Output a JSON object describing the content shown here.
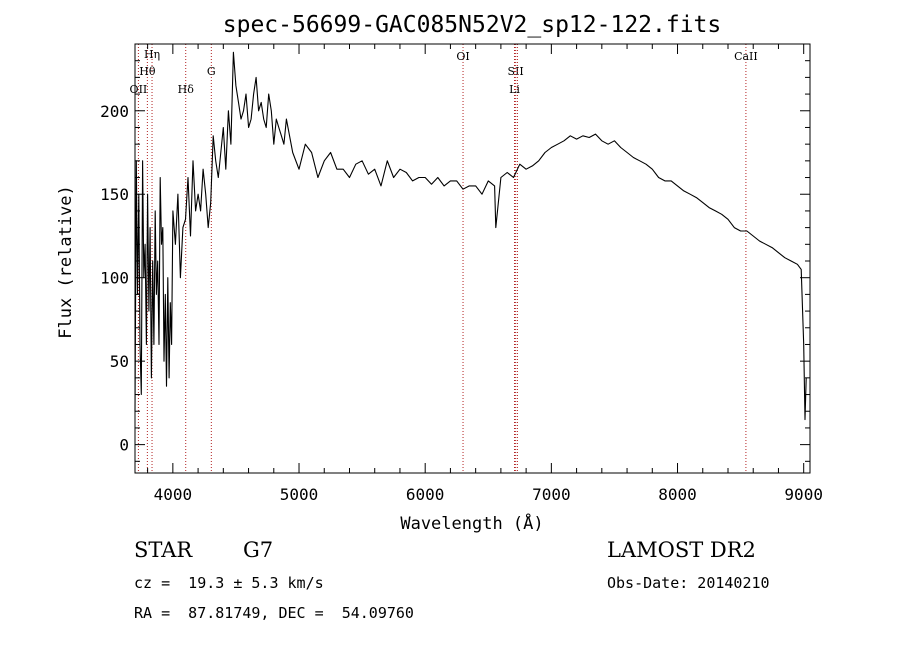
{
  "chart_data": {
    "type": "line",
    "title": "spec-56699-GAC085N52V2_sp12-122.fits",
    "xlabel": "Wavelength (Å)",
    "ylabel": "Flux (relative)",
    "xlim": [
      3700,
      9050
    ],
    "ylim": [
      -17,
      240
    ],
    "xticks": [
      4000,
      5000,
      6000,
      7000,
      8000,
      9000
    ],
    "yticks": [
      0,
      50,
      100,
      150,
      200
    ],
    "grid": false,
    "line_color": "#000000",
    "marker_color": "#b22222",
    "spectral_lines": [
      {
        "label": "Hη",
        "x": 3835
      },
      {
        "label": "Hθ",
        "x": 3798
      },
      {
        "label": "OII",
        "x": 3727
      },
      {
        "label": "Hδ",
        "x": 4102
      },
      {
        "label": "G",
        "x": 4305
      },
      {
        "label": "OI",
        "x": 6300
      },
      {
        "label": "SII",
        "x": 6717
      },
      {
        "label": "SII",
        "x": 6731
      },
      {
        "label": "Li",
        "x": 6708
      },
      {
        "label": "CaII",
        "x": 8542
      }
    ],
    "series": [
      {
        "x": [
          3700,
          3710,
          3720,
          3730,
          3740,
          3750,
          3760,
          3770,
          3780,
          3790,
          3800,
          3810,
          3820,
          3830,
          3840,
          3850,
          3860,
          3870,
          3880,
          3890,
          3900,
          3910,
          3920,
          3930,
          3940,
          3950,
          3960,
          3970,
          3980,
          3990,
          4000,
          4020,
          4040,
          4060,
          4080,
          4100,
          4120,
          4140,
          4160,
          4180,
          4200,
          4220,
          4240,
          4260,
          4280,
          4300,
          4320,
          4340,
          4360,
          4380,
          4400,
          4420,
          4440,
          4460,
          4480,
          4500,
          4520,
          4540,
          4560,
          4580,
          4600,
          4620,
          4640,
          4660,
          4680,
          4700,
          4720,
          4740,
          4760,
          4780,
          4800,
          4820,
          4840,
          4860,
          4880,
          4900,
          4950,
          5000,
          5050,
          5100,
          5150,
          5200,
          5250,
          5300,
          5350,
          5400,
          5450,
          5500,
          5550,
          5600,
          5650,
          5700,
          5750,
          5800,
          5850,
          5900,
          5950,
          6000,
          6050,
          6100,
          6150,
          6200,
          6250,
          6300,
          6350,
          6400,
          6450,
          6500,
          6550,
          6560,
          6600,
          6650,
          6700,
          6750,
          6800,
          6850,
          6900,
          6950,
          7000,
          7050,
          7100,
          7150,
          7200,
          7250,
          7300,
          7350,
          7400,
          7450,
          7500,
          7550,
          7600,
          7650,
          7700,
          7750,
          7800,
          7850,
          7900,
          7950,
          8000,
          8050,
          8100,
          8150,
          8200,
          8250,
          8300,
          8350,
          8400,
          8450,
          8500,
          8550,
          8600,
          8650,
          8700,
          8750,
          8800,
          8850,
          8900,
          8950,
          8980,
          9000,
          9010,
          9020
        ],
        "y": [
          20,
          170,
          90,
          150,
          60,
          30,
          170,
          100,
          120,
          60,
          150,
          80,
          130,
          40,
          110,
          60,
          140,
          90,
          110,
          60,
          160,
          120,
          130,
          50,
          90,
          35,
          100,
          40,
          85,
          60,
          140,
          120,
          150,
          100,
          130,
          135,
          160,
          125,
          170,
          140,
          150,
          140,
          165,
          150,
          130,
          145,
          185,
          170,
          160,
          175,
          190,
          165,
          200,
          180,
          235,
          215,
          205,
          195,
          200,
          210,
          190,
          195,
          210,
          220,
          200,
          205,
          195,
          190,
          210,
          200,
          180,
          195,
          190,
          185,
          180,
          195,
          175,
          165,
          180,
          175,
          160,
          170,
          175,
          165,
          165,
          160,
          168,
          170,
          162,
          165,
          155,
          170,
          160,
          165,
          163,
          158,
          160,
          160,
          156,
          160,
          155,
          158,
          158,
          153,
          155,
          155,
          150,
          158,
          155,
          130,
          160,
          163,
          160,
          168,
          165,
          167,
          170,
          175,
          178,
          180,
          182,
          185,
          183,
          185,
          184,
          186,
          182,
          180,
          182,
          178,
          175,
          172,
          170,
          168,
          165,
          160,
          158,
          158,
          155,
          152,
          150,
          148,
          145,
          142,
          140,
          138,
          135,
          130,
          128,
          128,
          125,
          122,
          120,
          118,
          115,
          112,
          110,
          108,
          105,
          60,
          15,
          40
        ]
      }
    ]
  },
  "info": {
    "object_class": "STAR",
    "subclass": "G7",
    "survey": "LAMOST DR2",
    "redshift": "cz =  19.3 ± 5.3 km/s",
    "obs_date": "Obs-Date: 20140210",
    "coords": "RA =  87.81749, DEC =  54.09760"
  }
}
